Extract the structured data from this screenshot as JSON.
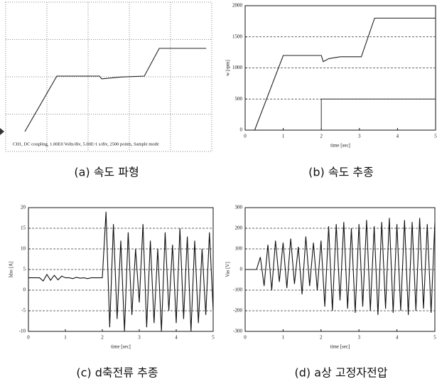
{
  "chart_data": [
    {
      "type": "line",
      "caption": "(a) 속도 파형",
      "annotation": "CH1, DC coupling, 1.00E0 Volts/div, 5.00E-1 s/div, 2500 points, Sample mode",
      "xlim": [
        -0.2,
        4.63
      ],
      "ylim": [
        -430,
        2800
      ],
      "series": [
        {
          "color": "#222222",
          "x": [
            0.25,
            1.0,
            2.0,
            2.05,
            2.5,
            3.05,
            3.4,
            4.5
          ],
          "values": [
            0,
            1200,
            1200,
            1140,
            1180,
            1200,
            1800,
            1800
          ]
        }
      ]
    },
    {
      "type": "line",
      "caption": "(b) 속도 추종",
      "xlabel": "time [sec]",
      "ylabel": "w [rpm]",
      "xlim": [
        0,
        5
      ],
      "ylim": [
        0,
        2000
      ],
      "xticks": [
        0,
        1,
        2,
        3,
        4,
        5
      ],
      "yticks": [
        0,
        500,
        1000,
        1500,
        2000
      ],
      "grid": true,
      "series": [
        {
          "color": "#222222",
          "x": [
            0.25,
            1.0,
            2.0,
            2.05,
            2.2,
            2.5,
            3.05,
            3.4,
            5.0
          ],
          "values": [
            0,
            1200,
            1200,
            1100,
            1150,
            1180,
            1180,
            1800,
            1800
          ]
        },
        {
          "color": "#444444",
          "x": [
            2,
            2,
            5
          ],
          "values": [
            0,
            500,
            500
          ]
        }
      ]
    },
    {
      "type": "line",
      "caption": "(c) d축전류 추종",
      "xlabel": "time [sec]",
      "ylabel": "Idss [A]",
      "xlim": [
        0,
        5
      ],
      "ylim": [
        -10,
        20
      ],
      "xticks": [
        0,
        1,
        2,
        3,
        4,
        5
      ],
      "yticks": [
        -10,
        -5,
        0,
        5,
        10,
        15,
        20
      ],
      "grid": true,
      "series": [
        {
          "color": "#111111",
          "x": [
            0,
            0.1,
            0.2,
            0.3,
            0.4,
            0.5,
            0.6,
            0.7,
            0.8,
            0.9,
            1.0,
            1.1,
            1.2,
            1.3,
            1.4,
            1.5,
            1.6,
            1.7,
            1.8,
            1.9,
            2.0,
            2.1,
            2.2,
            2.3,
            2.4,
            2.5,
            2.6,
            2.7,
            2.8,
            2.9,
            3.0,
            3.1,
            3.2,
            3.3,
            3.4,
            3.5,
            3.6,
            3.7,
            3.8,
            3.9,
            4.0,
            4.1,
            4.2,
            4.3,
            4.4,
            4.5,
            4.6,
            4.7,
            4.8,
            4.9,
            5.0
          ],
          "values": [
            3,
            3,
            3,
            3,
            2.2,
            3.8,
            2.4,
            3.6,
            2.5,
            3.4,
            3,
            3,
            2.8,
            3.1,
            2.9,
            3,
            2.8,
            3,
            3,
            3,
            3,
            19,
            -9,
            16,
            -7,
            12,
            -10,
            14,
            -6,
            10,
            -3,
            16,
            -9,
            12,
            -8,
            10,
            -10,
            14,
            -5,
            11,
            -8,
            15,
            -7,
            13,
            -10,
            12,
            -8,
            10,
            -6,
            14,
            -5
          ]
        }
      ]
    },
    {
      "type": "line",
      "caption": "(d) a상 고정자전압",
      "xlabel": "time [sec]",
      "ylabel": "Vas [V]",
      "xlim": [
        0,
        5
      ],
      "ylim": [
        -300,
        300
      ],
      "xticks": [
        0,
        1,
        2,
        3,
        4,
        5
      ],
      "yticks": [
        -300,
        -200,
        -100,
        0,
        100,
        200,
        300
      ],
      "grid": true,
      "series": [
        {
          "color": "#111111",
          "x": [
            0,
            0.1,
            0.2,
            0.3,
            0.4,
            0.5,
            0.6,
            0.7,
            0.8,
            0.9,
            1.0,
            1.1,
            1.2,
            1.3,
            1.4,
            1.5,
            1.6,
            1.7,
            1.8,
            1.9,
            2.0,
            2.1,
            2.2,
            2.3,
            2.4,
            2.5,
            2.6,
            2.7,
            2.8,
            2.9,
            3.0,
            3.1,
            3.2,
            3.3,
            3.4,
            3.5,
            3.6,
            3.7,
            3.8,
            3.9,
            4.0,
            4.1,
            4.2,
            4.3,
            4.4,
            4.5,
            4.6,
            4.7,
            4.8,
            4.9,
            5.0
          ],
          "values": [
            0,
            0,
            0,
            0,
            60,
            -80,
            120,
            -100,
            140,
            -60,
            130,
            -90,
            150,
            -70,
            110,
            -120,
            160,
            -80,
            130,
            -100,
            140,
            -180,
            210,
            -200,
            220,
            -150,
            230,
            -190,
            200,
            -210,
            220,
            -180,
            240,
            -200,
            210,
            -220,
            230,
            -190,
            250,
            -210,
            220,
            -200,
            240,
            -220,
            230,
            -200,
            250,
            -190,
            220,
            -210,
            230
          ]
        }
      ]
    }
  ]
}
